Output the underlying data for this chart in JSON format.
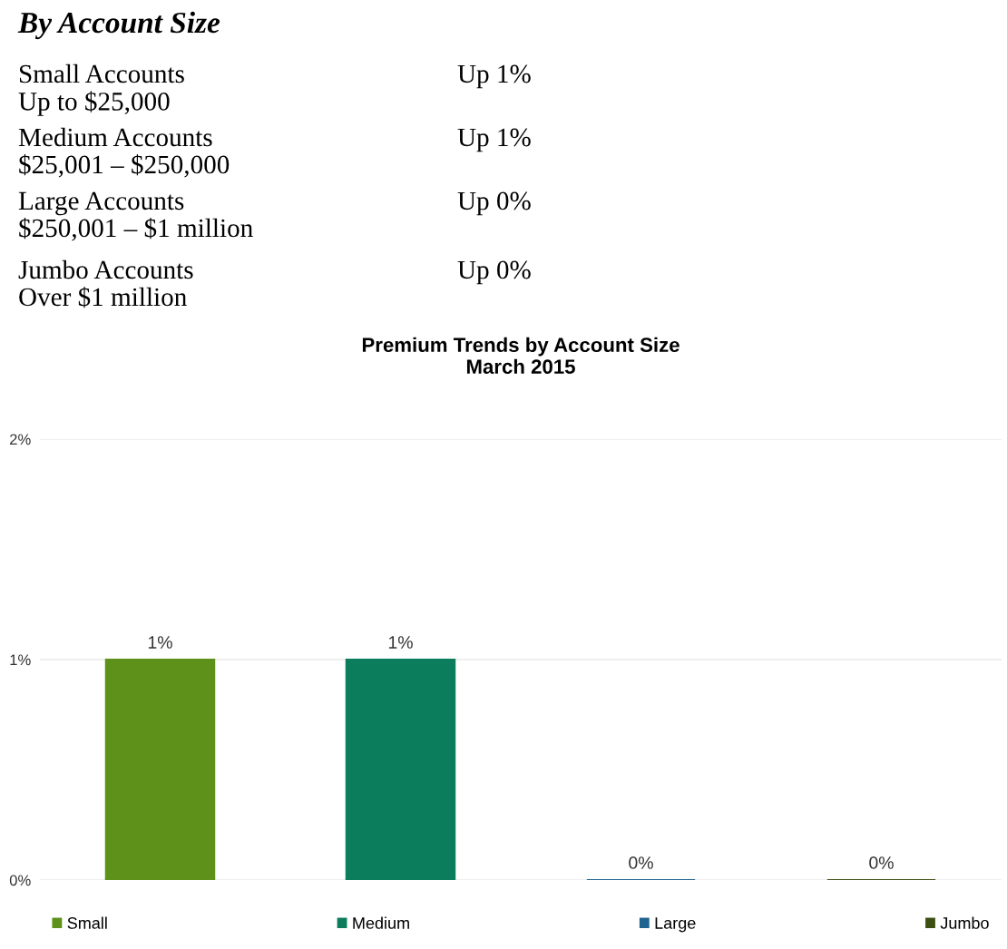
{
  "chart_data": [
    {
      "type": "other",
      "title": "By Account Size",
      "annotations": [
        "Small Accounts",
        "Up to $25,000",
        "Up 1%",
        "Medium Accounts",
        "$25,001 – $250,000",
        "Up 1%",
        "Large Accounts",
        "$250,001 – $1 million",
        "Up 0%",
        "Jumbo Accounts",
        "Over $1 million",
        "Up 0%"
      ]
    },
    {
      "type": "bar",
      "title": "Premium Trends by Account Size",
      "subtitle": "March 2015",
      "categories": [
        null
      ],
      "series": [
        {
          "name": "Small",
          "color": "#5e911a",
          "values": [
            1
          ],
          "value_labels": [
            "1%"
          ]
        },
        {
          "name": "Medium",
          "color": "#0c7d5c",
          "values": [
            1
          ],
          "value_labels": [
            "1%"
          ]
        },
        {
          "name": "Large",
          "color": "#1f6391",
          "values": [
            0
          ],
          "value_labels": [
            "0%"
          ]
        },
        {
          "name": "Jumbo",
          "color": "#3d4f12",
          "values": [
            0
          ],
          "value_labels": [
            "0%"
          ]
        }
      ],
      "ylim": [
        0,
        2
      ],
      "yticks": [
        {
          "value": 0,
          "label": "0%"
        },
        {
          "value": 1,
          "label": "1%"
        },
        {
          "value": 2,
          "label": "2%"
        }
      ],
      "grid": "y",
      "legend": "bottom"
    }
  ]
}
